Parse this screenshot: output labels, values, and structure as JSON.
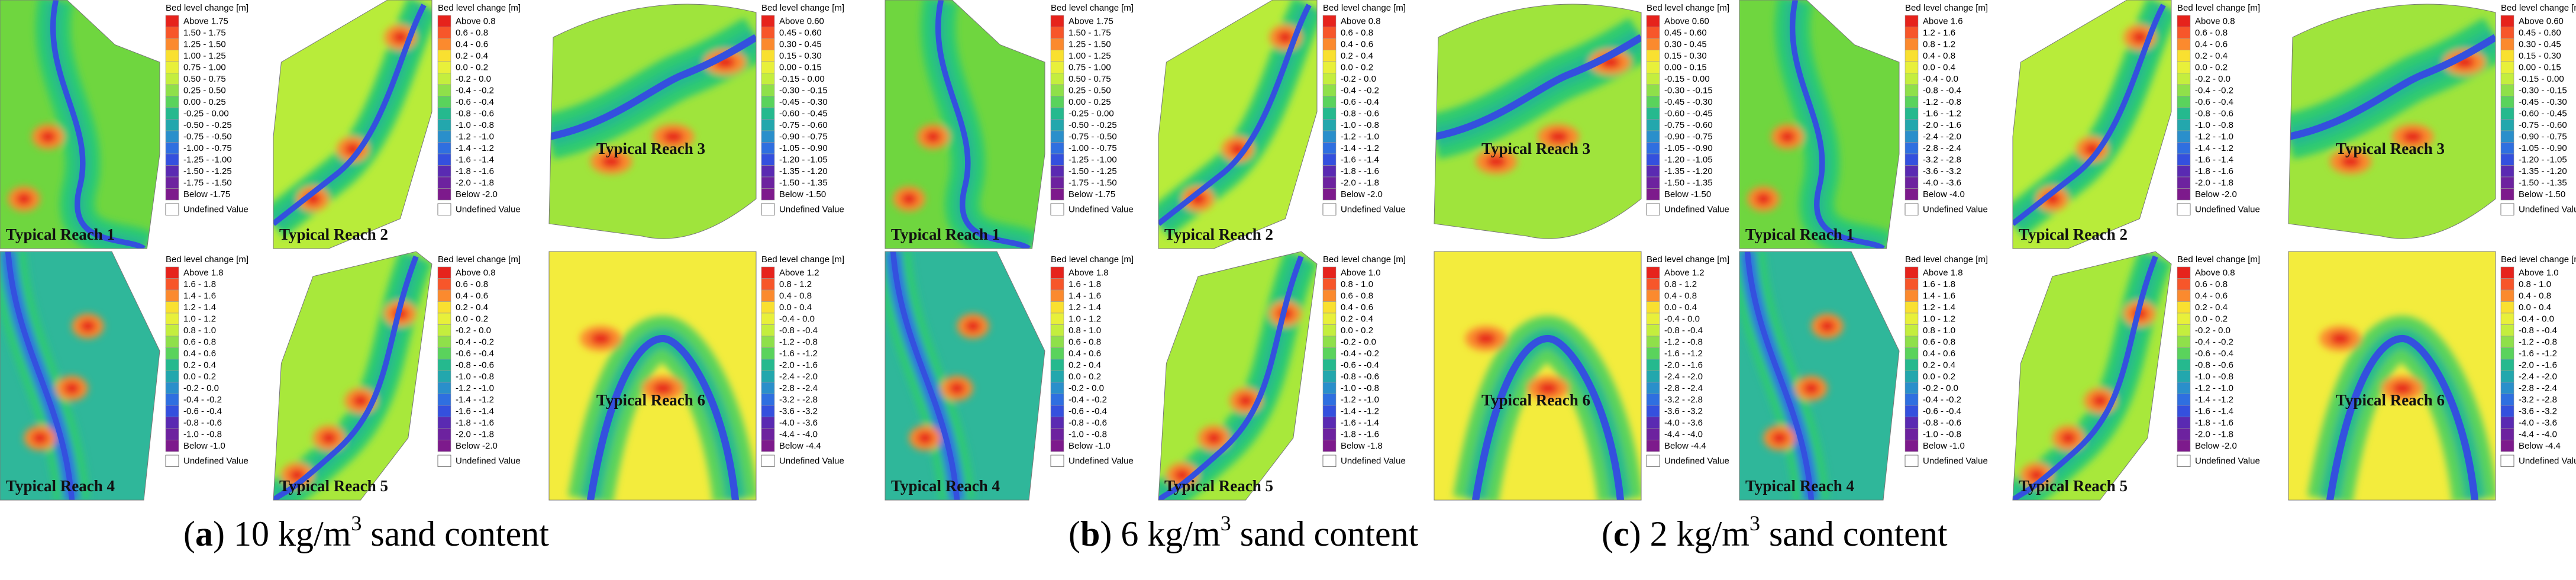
{
  "colorbar_title": "Bed level change [m]",
  "undefined_label": "Undefined Value",
  "colors": [
    "#e6231c",
    "#f7562a",
    "#fb8a2e",
    "#fdb72e",
    "#f9e030",
    "#e8f03a",
    "#c4ee3e",
    "#8fe04a",
    "#5ad35c",
    "#2ecb6f",
    "#25b98e",
    "#23a7ad",
    "#2a8fcb",
    "#2f6fe0",
    "#3450de",
    "#4736c7",
    "#5a2ab2",
    "#6d229f",
    "#7d1a8c"
  ],
  "panels": [
    {
      "letter": "a",
      "label": "a",
      "value": "10 kg/m",
      "sup": "3",
      "rest": " sand content",
      "reaches": [
        {
          "label": "Typical Reach 1",
          "legend": [
            "Above  1.75",
            "1.50 - 1.75",
            "1.25 - 1.50",
            "1.00 - 1.25",
            "0.75 - 1.00",
            "0.50 - 0.75",
            "0.25 - 0.50",
            "0.00 - 0.25",
            "-0.25 - 0.00",
            "-0.50 - -0.25",
            "-0.75 - -0.50",
            "-1.00 - -0.75",
            "-1.25 - -1.00",
            "-1.50 - -1.25",
            "-1.75 - -1.50",
            "Below -1.75"
          ]
        },
        {
          "label": "Typical Reach 2",
          "legend": [
            "Above  0.8",
            "0.6 - 0.8",
            "0.4 - 0.6",
            "0.2 - 0.4",
            "0.0 - 0.2",
            "-0.2 - 0.0",
            "-0.4 - -0.2",
            "-0.6 - -0.4",
            "-0.8 - -0.6",
            "-1.0 - -0.8",
            "-1.2 - -1.0",
            "-1.4 - -1.2",
            "-1.6 - -1.4",
            "-1.8 - -1.6",
            "-2.0 - -1.8",
            "Below -2.0"
          ]
        },
        {
          "label": "Typical Reach 3",
          "legend": [
            "Above  0.60",
            "0.45 - 0.60",
            "0.30 - 0.45",
            "0.15 - 0.30",
            "0.00 - 0.15",
            "-0.15 - 0.00",
            "-0.30 - -0.15",
            "-0.45 - -0.30",
            "-0.60 - -0.45",
            "-0.75 - -0.60",
            "-0.90 - -0.75",
            "-1.05 - -0.90",
            "-1.20 - -1.05",
            "-1.35 - -1.20",
            "-1.50 - -1.35",
            "Below -1.50"
          ]
        },
        {
          "label": "Typical Reach 4",
          "legend": [
            "Above  1.8",
            "1.6 - 1.8",
            "1.4 - 1.6",
            "1.2 - 1.4",
            "1.0 - 1.2",
            "0.8 - 1.0",
            "0.6 - 0.8",
            "0.4 - 0.6",
            "0.2 - 0.4",
            "0.0 - 0.2",
            "-0.2 - 0.0",
            "-0.4 - -0.2",
            "-0.6 - -0.4",
            "-0.8 - -0.6",
            "-1.0 - -0.8",
            "Below -1.0"
          ]
        },
        {
          "label": "Typical Reach 5",
          "legend": [
            "Above  0.8",
            "0.6 - 0.8",
            "0.4 - 0.6",
            "0.2 - 0.4",
            "0.0 - 0.2",
            "-0.2 - 0.0",
            "-0.4 - -0.2",
            "-0.6 - -0.4",
            "-0.8 - -0.6",
            "-1.0 - -0.8",
            "-1.2 - -1.0",
            "-1.4 - -1.2",
            "-1.6 - -1.4",
            "-1.8 - -1.6",
            "-2.0 - -1.8",
            "Below -2.0"
          ]
        },
        {
          "label": "Typical Reach 6",
          "legend": [
            "Above  1.2",
            "0.8 - 1.2",
            "0.4 - 0.8",
            "0.0 - 0.4",
            "-0.4 - 0.0",
            "-0.8 - -0.4",
            "-1.2 - -0.8",
            "-1.6 - -1.2",
            "-2.0 - -1.6",
            "-2.4 - -2.0",
            "-2.8 - -2.4",
            "-3.2 - -2.8",
            "-3.6 - -3.2",
            "-4.0 - -3.6",
            "-4.4 - -4.0",
            "Below -4.4"
          ]
        }
      ]
    },
    {
      "letter": "b",
      "label": "b",
      "value": "6 kg/m",
      "sup": "3",
      "rest": " sand content",
      "reaches": [
        {
          "label": "Typical Reach 1",
          "legend": [
            "Above  1.75",
            "1.50 - 1.75",
            "1.25 - 1.50",
            "1.00 - 1.25",
            "0.75 - 1.00",
            "0.50 - 0.75",
            "0.25 - 0.50",
            "0.00 - 0.25",
            "-0.25 - 0.00",
            "-0.50 - -0.25",
            "-0.75 - -0.50",
            "-1.00 - -0.75",
            "-1.25 - -1.00",
            "-1.50 - -1.25",
            "-1.75 - -1.50",
            "Below -1.75"
          ]
        },
        {
          "label": "Typical Reach 2",
          "legend": [
            "Above  0.8",
            "0.6 - 0.8",
            "0.4 - 0.6",
            "0.2 - 0.4",
            "0.0 - 0.2",
            "-0.2 - 0.0",
            "-0.4 - -0.2",
            "-0.6 - -0.4",
            "-0.8 - -0.6",
            "-1.0 - -0.8",
            "-1.2 - -1.0",
            "-1.4 - -1.2",
            "-1.6 - -1.4",
            "-1.8 - -1.6",
            "-2.0 - -1.8",
            "Below -2.0"
          ]
        },
        {
          "label": "Typical Reach 3",
          "legend": [
            "Above  0.60",
            "0.45 - 0.60",
            "0.30 - 0.45",
            "0.15 - 0.30",
            "0.00 - 0.15",
            "-0.15 - 0.00",
            "-0.30 - -0.15",
            "-0.45 - -0.30",
            "-0.60 - -0.45",
            "-0.75 - -0.60",
            "-0.90 - -0.75",
            "-1.05 - -0.90",
            "-1.20 - -1.05",
            "-1.35 - -1.20",
            "-1.50 - -1.35",
            "Below -1.50"
          ]
        },
        {
          "label": "Typical Reach 4",
          "legend": [
            "Above  1.8",
            "1.6 - 1.8",
            "1.4 - 1.6",
            "1.2 - 1.4",
            "1.0 - 1.2",
            "0.8 - 1.0",
            "0.6 - 0.8",
            "0.4 - 0.6",
            "0.2 - 0.4",
            "0.0 - 0.2",
            "-0.2 - 0.0",
            "-0.4 - -0.2",
            "-0.6 - -0.4",
            "-0.8 - -0.6",
            "-1.0 - -0.8",
            "Below -1.0"
          ]
        },
        {
          "label": "Typical Reach 5",
          "legend": [
            "Above  1.0",
            "0.8 - 1.0",
            "0.6 - 0.8",
            "0.4 - 0.6",
            "0.2 - 0.4",
            "0.0 - 0.2",
            "-0.2 - 0.0",
            "-0.4 - -0.2",
            "-0.6 - -0.4",
            "-0.8 - -0.6",
            "-1.0 - -0.8",
            "-1.2 - -1.0",
            "-1.4 - -1.2",
            "-1.6 - -1.4",
            "-1.8 - -1.6",
            "Below -1.8"
          ]
        },
        {
          "label": "Typical Reach 6",
          "legend": [
            "Above  1.2",
            "0.8 - 1.2",
            "0.4 - 0.8",
            "0.0 - 0.4",
            "-0.4 - 0.0",
            "-0.8 - -0.4",
            "-1.2 - -0.8",
            "-1.6 - -1.2",
            "-2.0 - -1.6",
            "-2.4 - -2.0",
            "-2.8 - -2.4",
            "-3.2 - -2.8",
            "-3.6 - -3.2",
            "-4.0 - -3.6",
            "-4.4 - -4.0",
            "Below -4.4"
          ]
        }
      ]
    },
    {
      "letter": "c",
      "label": "c",
      "value": "2 kg/m",
      "sup": "3",
      "rest": " sand content",
      "reaches": [
        {
          "label": "Typical Reach 1",
          "legend": [
            "Above  1.6",
            "1.2 - 1.6",
            "0.8 - 1.2",
            "0.4 - 0.8",
            "0.0 - 0.4",
            "-0.4 - 0.0",
            "-0.8 - -0.4",
            "-1.2 - -0.8",
            "-1.6 - -1.2",
            "-2.0 - -1.6",
            "-2.4 - -2.0",
            "-2.8 - -2.4",
            "-3.2 - -2.8",
            "-3.6 - -3.2",
            "-4.0 - -3.6",
            "Below -4.0"
          ]
        },
        {
          "label": "Typical Reach 2",
          "legend": [
            "Above  0.8",
            "0.6 - 0.8",
            "0.4 - 0.6",
            "0.2 - 0.4",
            "0.0 - 0.2",
            "-0.2 - 0.0",
            "-0.4 - -0.2",
            "-0.6 - -0.4",
            "-0.8 - -0.6",
            "-1.0 - -0.8",
            "-1.2 - -1.0",
            "-1.4 - -1.2",
            "-1.6 - -1.4",
            "-1.8 - -1.6",
            "-2.0 - -1.8",
            "Below -2.0"
          ]
        },
        {
          "label": "Typical Reach 3",
          "legend": [
            "Above  0.60",
            "0.45 - 0.60",
            "0.30 - 0.45",
            "0.15 - 0.30",
            "0.00 - 0.15",
            "-0.15 - 0.00",
            "-0.30 - -0.15",
            "-0.45 - -0.30",
            "-0.60 - -0.45",
            "-0.75 - -0.60",
            "-0.90 - -0.75",
            "-1.05 - -0.90",
            "-1.20 - -1.05",
            "-1.35 - -1.20",
            "-1.50 - -1.35",
            "Below -1.50"
          ]
        },
        {
          "label": "Typical Reach 4",
          "legend": [
            "Above  1.8",
            "1.6 - 1.8",
            "1.4 - 1.6",
            "1.2 - 1.4",
            "1.0 - 1.2",
            "0.8 - 1.0",
            "0.6 - 0.8",
            "0.4 - 0.6",
            "0.2 - 0.4",
            "0.0 - 0.2",
            "-0.2 - 0.0",
            "-0.4 - -0.2",
            "-0.6 - -0.4",
            "-0.8 - -0.6",
            "-1.0 - -0.8",
            "Below -1.0"
          ]
        },
        {
          "label": "Typical Reach 5",
          "legend": [
            "Above  0.8",
            "0.6 - 0.8",
            "0.4 - 0.6",
            "0.2 - 0.4",
            "0.0 - 0.2",
            "-0.2 - 0.0",
            "-0.4 - -0.2",
            "-0.6 - -0.4",
            "-0.8 - -0.6",
            "-1.0 - -0.8",
            "-1.2 - -1.0",
            "-1.4 - -1.2",
            "-1.6 - -1.4",
            "-1.8 - -1.6",
            "-2.0 - -1.8",
            "Below -2.0"
          ]
        },
        {
          "label": "Typical Reach 6",
          "legend": [
            "Above  1.0",
            "0.8 - 1.0",
            "0.4 - 0.8",
            "0.0 - 0.4",
            "-0.4 - 0.0",
            "-0.8 - -0.4",
            "-1.2 - -0.8",
            "-1.6 - -1.2",
            "-2.0 - -1.6",
            "-2.4 - -2.0",
            "-2.8 - -2.4",
            "-3.2 - -2.8",
            "-3.6 - -3.2",
            "-4.0 - -3.6",
            "-4.4 - -4.0",
            "Below -4.4"
          ]
        }
      ]
    }
  ]
}
